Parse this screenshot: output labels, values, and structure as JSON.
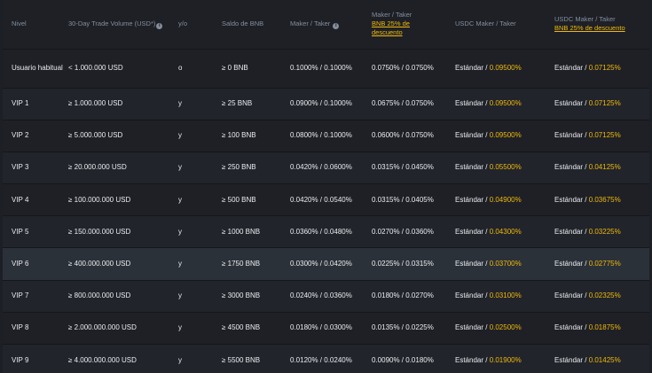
{
  "headers": {
    "level": "Nivel",
    "volume": "30-Day Trade Volume (USD*)",
    "yo": "y/o",
    "bnb_balance": "Saldo de BNB",
    "maker_taker": "Maker / Taker",
    "maker_taker_bnb_line1": "Maker / Taker",
    "maker_taker_bnb_promo": "BNB 25% de descuento",
    "usdc": "USDC Maker / Taker",
    "usdc_bnb_line1": "USDC Maker / Taker",
    "usdc_bnb_promo": "BNB 25% de descuento"
  },
  "icons": {
    "volume_info": "info-icon",
    "maker_taker_info": "info-icon"
  },
  "colors": {
    "accent": "#f0b90b",
    "text": "#eaecef",
    "muted": "#848e9c",
    "background": "#1e2026",
    "row_highlight": "#2b3139"
  },
  "rows": [
    {
      "tier": "Usuario habitual",
      "volume": "< 1.000.000 USD",
      "yo": "o",
      "bnb": "≥ 0 BNB",
      "mt": "0.1000% / 0.1000%",
      "mt_bnb": "0.0750% / 0.0750%",
      "usdc_prefix": "Estándar / ",
      "usdc_value": "0.09500%",
      "usdc_bnb_prefix": "Estándar / ",
      "usdc_bnb_value": "0.07125%"
    },
    {
      "tier": "VIP 1",
      "volume": "≥ 1.000.000 USD",
      "yo": "y",
      "bnb": "≥ 25 BNB",
      "mt": "0.0900% / 0.1000%",
      "mt_bnb": "0.0675% / 0.0750%",
      "usdc_prefix": "Estándar / ",
      "usdc_value": "0.09500%",
      "usdc_bnb_prefix": "Estándar / ",
      "usdc_bnb_value": "0.07125%"
    },
    {
      "tier": "VIP 2",
      "volume": "≥ 5.000.000 USD",
      "yo": "y",
      "bnb": "≥ 100 BNB",
      "mt": "0.0800% / 0.1000%",
      "mt_bnb": "0.0600% / 0.0750%",
      "usdc_prefix": "Estándar / ",
      "usdc_value": "0.09500%",
      "usdc_bnb_prefix": "Estándar / ",
      "usdc_bnb_value": "0.07125%"
    },
    {
      "tier": "VIP 3",
      "volume": "≥ 20.000.000 USD",
      "yo": "y",
      "bnb": "≥ 250 BNB",
      "mt": "0.0420% / 0.0600%",
      "mt_bnb": "0.0315% / 0.0450%",
      "usdc_prefix": "Estándar / ",
      "usdc_value": "0.05500%",
      "usdc_bnb_prefix": "Estándar / ",
      "usdc_bnb_value": "0.04125%"
    },
    {
      "tier": "VIP 4",
      "volume": "≥ 100.000.000 USD",
      "yo": "y",
      "bnb": "≥ 500 BNB",
      "mt": "0.0420% / 0.0540%",
      "mt_bnb": "0.0315% / 0.0405%",
      "usdc_prefix": "Estándar / ",
      "usdc_value": "0.04900%",
      "usdc_bnb_prefix": "Estándar / ",
      "usdc_bnb_value": "0.03675%"
    },
    {
      "tier": "VIP 5",
      "volume": "≥ 150.000.000 USD",
      "yo": "y",
      "bnb": "≥ 1000 BNB",
      "mt": "0.0360% / 0.0480%",
      "mt_bnb": "0.0270% / 0.0360%",
      "usdc_prefix": "Estándar / ",
      "usdc_value": "0.04300%",
      "usdc_bnb_prefix": "Estándar / ",
      "usdc_bnb_value": "0.03225%"
    },
    {
      "tier": "VIP 6",
      "volume": "≥ 400.000.000 USD",
      "yo": "y",
      "bnb": "≥ 1750 BNB",
      "mt": "0.0300% / 0.0420%",
      "mt_bnb": "0.0225% / 0.0315%",
      "usdc_prefix": "Estándar / ",
      "usdc_value": "0.03700%",
      "usdc_bnb_prefix": "Estándar / ",
      "usdc_bnb_value": "0.02775%"
    },
    {
      "tier": "VIP 7",
      "volume": "≥ 800.000.000 USD",
      "yo": "y",
      "bnb": "≥ 3000 BNB",
      "mt": "0.0240% / 0.0360%",
      "mt_bnb": "0.0180% / 0.0270%",
      "usdc_prefix": "Estándar / ",
      "usdc_value": "0.03100%",
      "usdc_bnb_prefix": "Estándar / ",
      "usdc_bnb_value": "0.02325%"
    },
    {
      "tier": "VIP 8",
      "volume": "≥ 2.000.000.000 USD",
      "yo": "y",
      "bnb": "≥ 4500 BNB",
      "mt": "0.0180% / 0.0300%",
      "mt_bnb": "0.0135% / 0.0225%",
      "usdc_prefix": "Estándar / ",
      "usdc_value": "0.02500%",
      "usdc_bnb_prefix": "Estándar / ",
      "usdc_bnb_value": "0.01875%"
    },
    {
      "tier": "VIP 9",
      "volume": "≥ 4.000.000.000 USD",
      "yo": "y",
      "bnb": "≥ 5500 BNB",
      "mt": "0.0120% / 0.0240%",
      "mt_bnb": "0.0090% / 0.0180%",
      "usdc_prefix": "Estándar / ",
      "usdc_value": "0.01900%",
      "usdc_bnb_prefix": "Estándar / ",
      "usdc_bnb_value": "0.01425%"
    }
  ]
}
